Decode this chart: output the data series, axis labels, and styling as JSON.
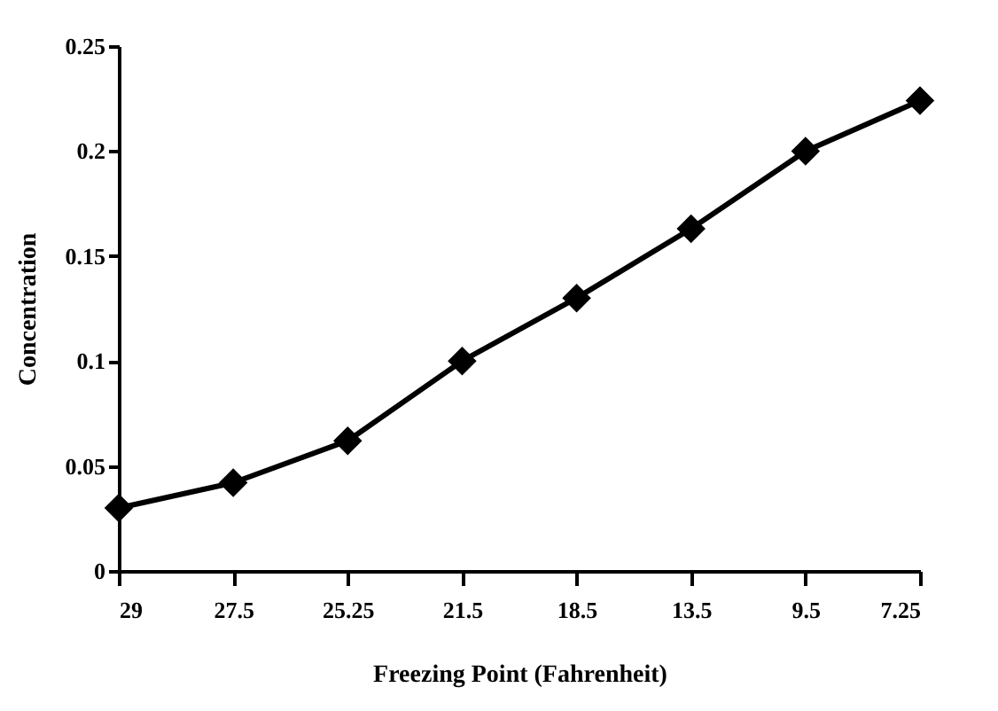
{
  "chart_data": {
    "type": "line",
    "xlabel": "Freezing Point (Fahrenheit)",
    "ylabel": "Concentration",
    "categories": [
      "29",
      "27.5",
      "25.25",
      "21.5",
      "18.5",
      "13.5",
      "9.5",
      "7.25"
    ],
    "series": [
      {
        "color": "#000000",
        "values": [
          0.03,
          0.042,
          0.062,
          0.1,
          0.13,
          0.163,
          0.2,
          0.224
        ]
      }
    ],
    "ylim": [
      0,
      0.25
    ],
    "yticks": [
      {
        "value": 0,
        "label": "0"
      },
      0.05,
      {
        "value": 0.1,
        "label": "0.1"
      },
      0.15,
      {
        "value": 0.2,
        "label": "0.2"
      },
      0.25
    ],
    "grid": false,
    "marker": "diamond",
    "line_style": "solid"
  }
}
